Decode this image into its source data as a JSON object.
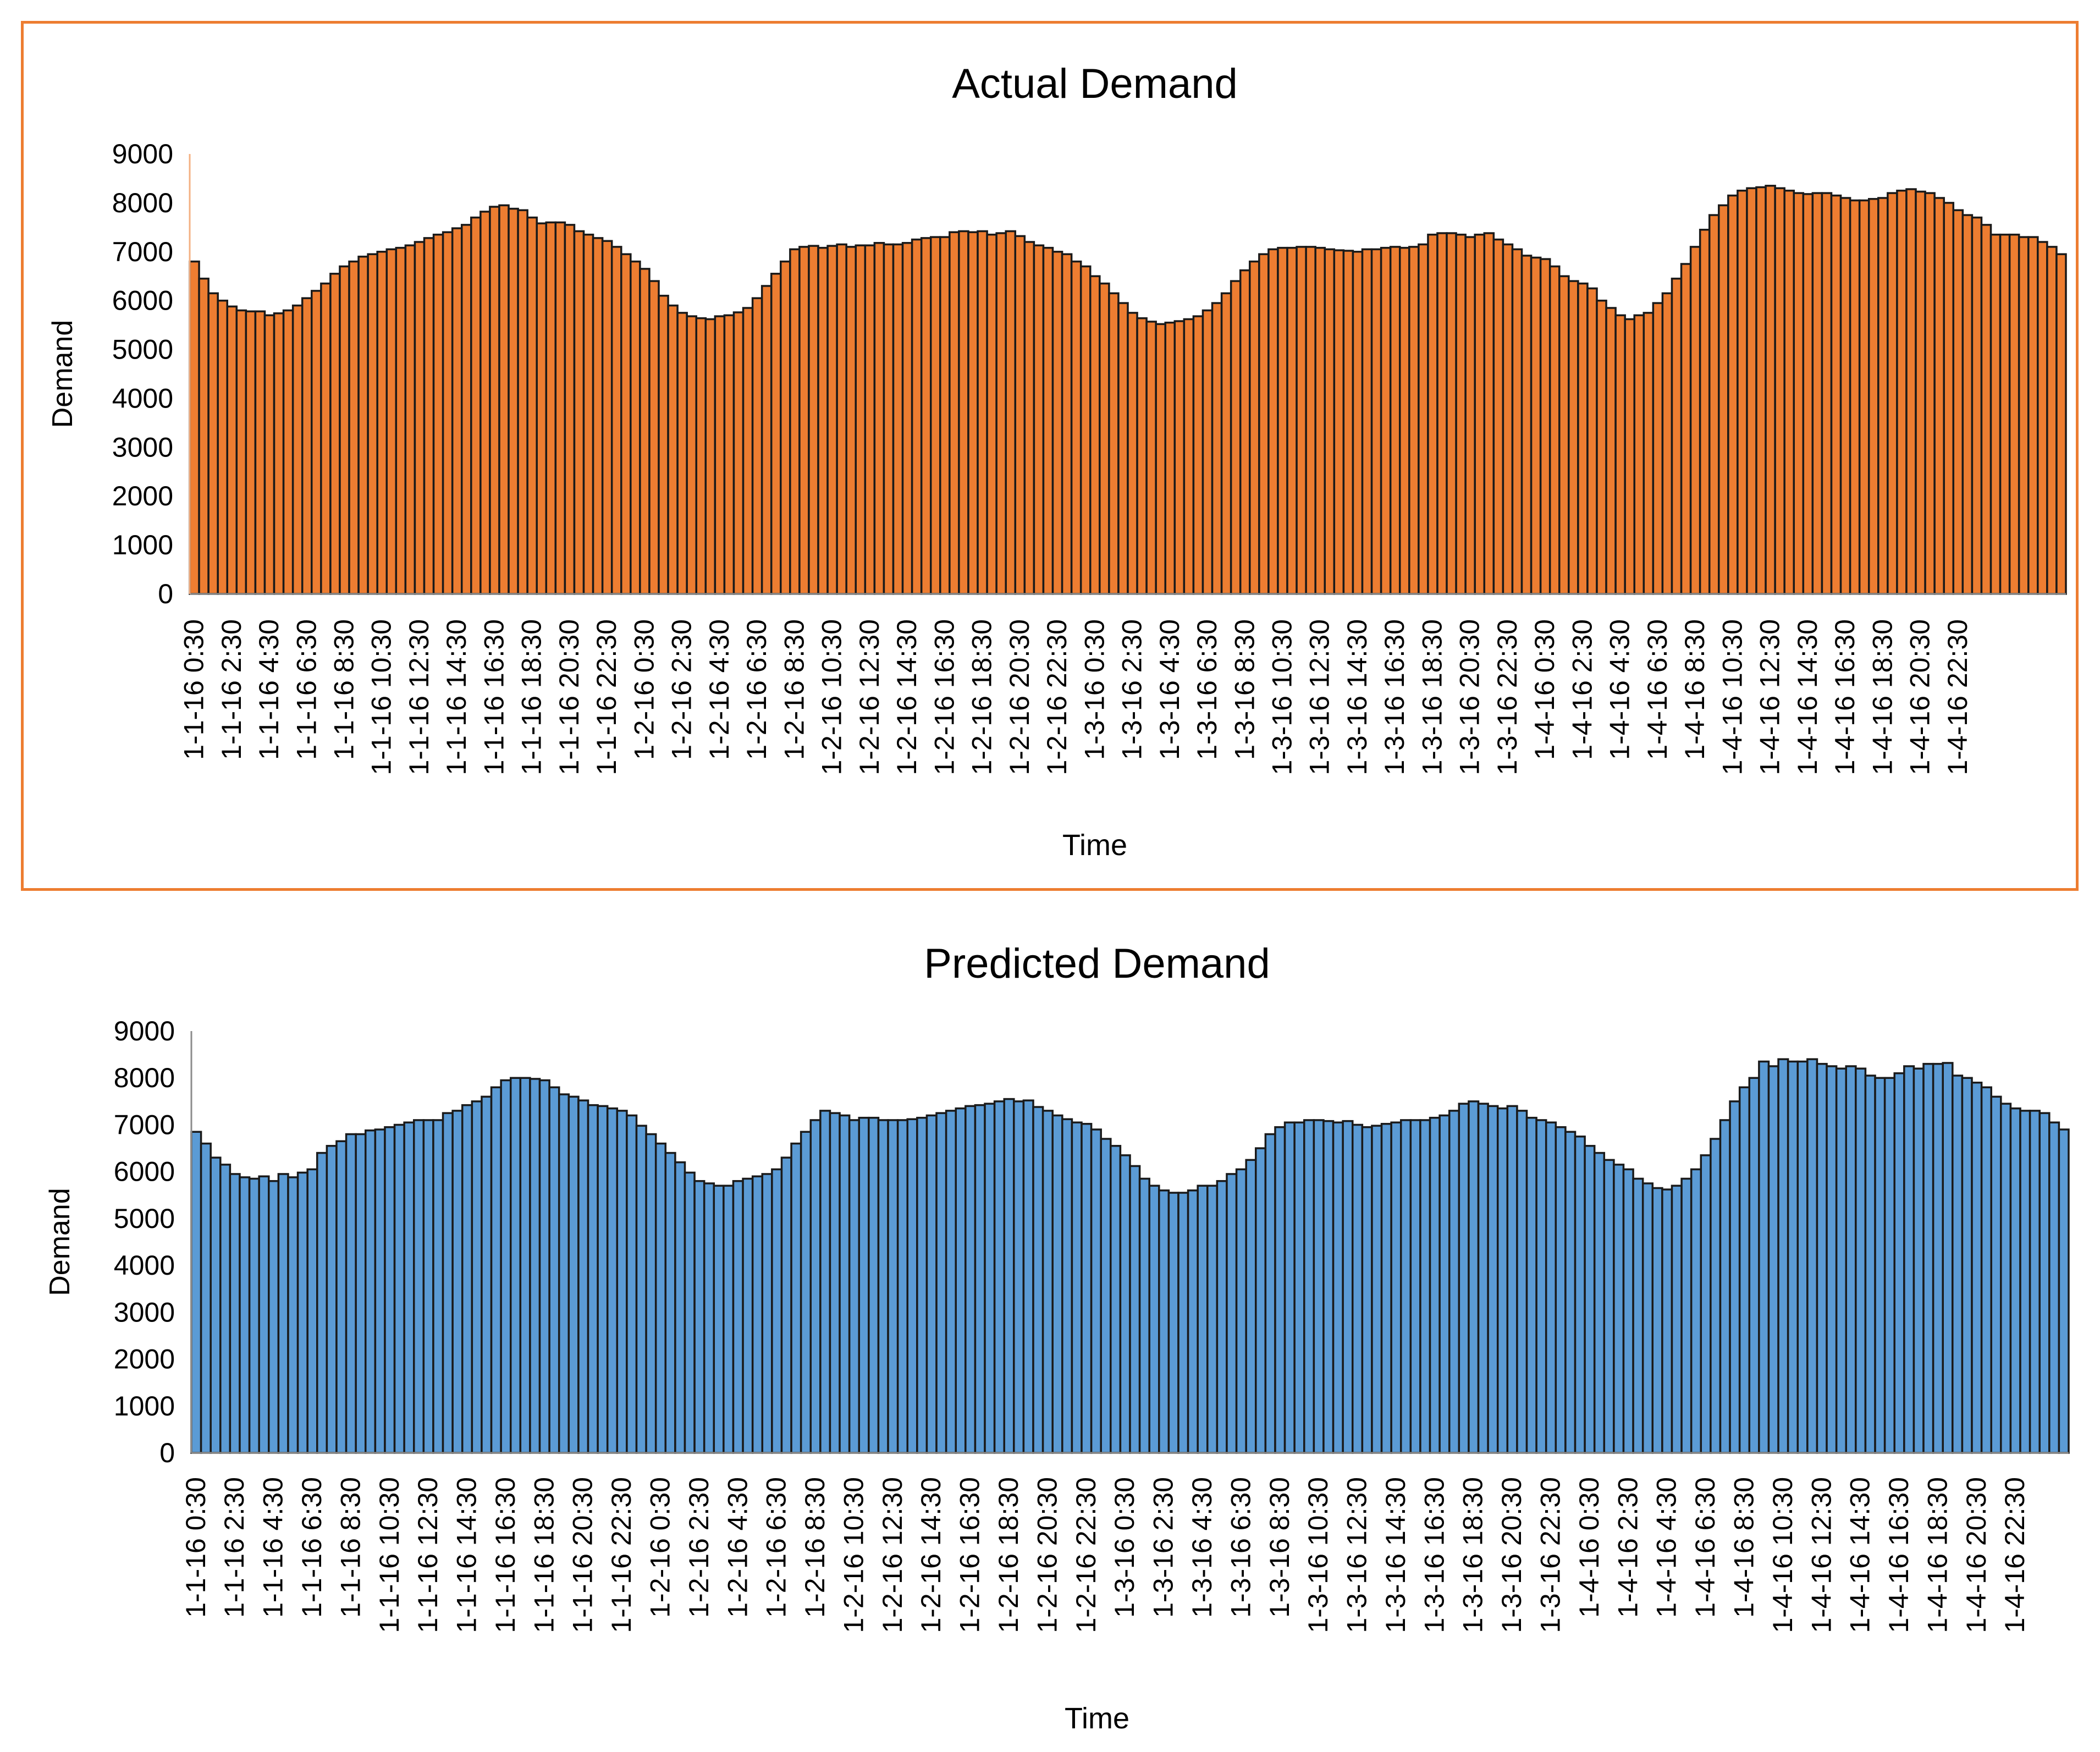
{
  "chart_data": [
    {
      "type": "bar",
      "title": "Actual Demand",
      "xlabel": "Time",
      "ylabel": "Demand",
      "ylim": [
        0,
        9000
      ],
      "yticks": [
        "0",
        "1000",
        "2000",
        "3000",
        "4000",
        "5000",
        "6000",
        "7000",
        "8000",
        "9000"
      ],
      "grid": false,
      "bar_color": "#ED7D31",
      "bar_edge_color": "#1a1a1a",
      "frame_color": "#ED7D31",
      "tick_labels": [
        "1-1-16 0:30",
        "1-1-16 2:30",
        "1-1-16 4:30",
        "1-1-16 6:30",
        "1-1-16 8:30",
        "1-1-16 10:30",
        "1-1-16 12:30",
        "1-1-16 14:30",
        "1-1-16 16:30",
        "1-1-16 18:30",
        "1-1-16 20:30",
        "1-1-16 22:30",
        "1-2-16 0:30",
        "1-2-16 2:30",
        "1-2-16 4:30",
        "1-2-16 6:30",
        "1-2-16 8:30",
        "1-2-16 10:30",
        "1-2-16 12:30",
        "1-2-16 14:30",
        "1-2-16 16:30",
        "1-2-16 18:30",
        "1-2-16 20:30",
        "1-2-16 22:30",
        "1-3-16 0:30",
        "1-3-16 2:30",
        "1-3-16 4:30",
        "1-3-16 6:30",
        "1-3-16 8:30",
        "1-3-16 10:30",
        "1-3-16 12:30",
        "1-3-16 14:30",
        "1-3-16 16:30",
        "1-3-16 18:30",
        "1-3-16 20:30",
        "1-3-16 22:30",
        "1-4-16 0:30",
        "1-4-16 2:30",
        "1-4-16 4:30",
        "1-4-16 6:30",
        "1-4-16 8:30",
        "1-4-16 10:30",
        "1-4-16 12:30",
        "1-4-16 14:30",
        "1-4-16 16:30",
        "1-4-16 18:30",
        "1-4-16 20:30",
        "1-4-16 22:30"
      ],
      "values": [
        6800,
        6450,
        6150,
        6000,
        5880,
        5800,
        5780,
        5780,
        5700,
        5740,
        5800,
        5900,
        6050,
        6200,
        6350,
        6550,
        6700,
        6800,
        6900,
        6950,
        7000,
        7050,
        7080,
        7130,
        7200,
        7280,
        7350,
        7400,
        7480,
        7550,
        7700,
        7820,
        7920,
        7950,
        7880,
        7850,
        7700,
        7580,
        7600,
        7600,
        7550,
        7420,
        7350,
        7280,
        7220,
        7100,
        6950,
        6800,
        6650,
        6400,
        6100,
        5900,
        5750,
        5680,
        5640,
        5620,
        5680,
        5700,
        5760,
        5850,
        6050,
        6300,
        6550,
        6800,
        7050,
        7100,
        7120,
        7080,
        7120,
        7150,
        7100,
        7130,
        7130,
        7180,
        7150,
        7150,
        7180,
        7250,
        7280,
        7300,
        7300,
        7400,
        7420,
        7400,
        7420,
        7350,
        7380,
        7420,
        7320,
        7200,
        7130,
        7080,
        7000,
        6950,
        6800,
        6700,
        6500,
        6350,
        6150,
        5950,
        5750,
        5640,
        5570,
        5520,
        5550,
        5580,
        5620,
        5680,
        5800,
        5950,
        6150,
        6400,
        6620,
        6800,
        6950,
        7050,
        7080,
        7080,
        7100,
        7100,
        7080,
        7050,
        7030,
        7020,
        7000,
        7050,
        7050,
        7080,
        7100,
        7080,
        7100,
        7150,
        7350,
        7380,
        7380,
        7350,
        7300,
        7350,
        7380,
        7250,
        7150,
        7050,
        6920,
        6880,
        6850,
        6700,
        6500,
        6400,
        6350,
        6250,
        6000,
        5850,
        5700,
        5620,
        5700,
        5750,
        5950,
        6150,
        6450,
        6750,
        7100,
        7450,
        7750,
        7950,
        8150,
        8250,
        8300,
        8320,
        8350,
        8300,
        8250,
        8200,
        8180,
        8200,
        8200,
        8150,
        8100,
        8050,
        8050,
        8080,
        8100,
        8200,
        8250,
        8280,
        8230,
        8200,
        8100,
        8000,
        7850,
        7750,
        7700,
        7550,
        7350,
        7350,
        7350,
        7300,
        7300,
        7200,
        7100,
        6950
      ]
    },
    {
      "type": "bar",
      "title": "Predicted Demand",
      "xlabel": "Time",
      "ylabel": "Demand",
      "ylim": [
        0,
        9000
      ],
      "yticks": [
        "0",
        "1000",
        "2000",
        "3000",
        "4000",
        "5000",
        "6000",
        "7000",
        "8000",
        "9000"
      ],
      "grid": false,
      "bar_color": "#5B9BD5",
      "bar_edge_color": "#1a1a1a",
      "tick_labels": [
        "1-1-16 0:30",
        "1-1-16 2:30",
        "1-1-16 4:30",
        "1-1-16 6:30",
        "1-1-16 8:30",
        "1-1-16 10:30",
        "1-1-16 12:30",
        "1-1-16 14:30",
        "1-1-16 16:30",
        "1-1-16 18:30",
        "1-1-16 20:30",
        "1-1-16 22:30",
        "1-2-16 0:30",
        "1-2-16 2:30",
        "1-2-16 4:30",
        "1-2-16 6:30",
        "1-2-16 8:30",
        "1-2-16 10:30",
        "1-2-16 12:30",
        "1-2-16 14:30",
        "1-2-16 16:30",
        "1-2-16 18:30",
        "1-2-16 20:30",
        "1-2-16 22:30",
        "1-3-16 0:30",
        "1-3-16 2:30",
        "1-3-16 4:30",
        "1-3-16 6:30",
        "1-3-16 8:30",
        "1-3-16 10:30",
        "1-3-16 12:30",
        "1-3-16 14:30",
        "1-3-16 16:30",
        "1-3-16 18:30",
        "1-3-16 20:30",
        "1-3-16 22:30",
        "1-4-16 0:30",
        "1-4-16 2:30",
        "1-4-16 4:30",
        "1-4-16 6:30",
        "1-4-16 8:30",
        "1-4-16 10:30",
        "1-4-16 12:30",
        "1-4-16 14:30",
        "1-4-16 16:30",
        "1-4-16 18:30",
        "1-4-16 20:30",
        "1-4-16 22:30"
      ],
      "values": [
        6850,
        6600,
        6300,
        6150,
        5950,
        5880,
        5850,
        5900,
        5800,
        5950,
        5880,
        5980,
        6050,
        6400,
        6550,
        6650,
        6800,
        6800,
        6880,
        6900,
        6950,
        7000,
        7050,
        7100,
        7100,
        7100,
        7250,
        7300,
        7420,
        7500,
        7600,
        7800,
        7950,
        8000,
        8000,
        7980,
        7950,
        7800,
        7650,
        7600,
        7520,
        7420,
        7400,
        7350,
        7300,
        7200,
        6980,
        6800,
        6600,
        6400,
        6200,
        5980,
        5800,
        5750,
        5700,
        5700,
        5800,
        5850,
        5900,
        5950,
        6050,
        6300,
        6600,
        6850,
        7100,
        7300,
        7250,
        7200,
        7100,
        7150,
        7150,
        7100,
        7100,
        7100,
        7120,
        7150,
        7200,
        7250,
        7300,
        7350,
        7400,
        7420,
        7450,
        7500,
        7550,
        7500,
        7520,
        7380,
        7300,
        7200,
        7120,
        7050,
        7020,
        6900,
        6700,
        6550,
        6350,
        6120,
        5850,
        5700,
        5600,
        5550,
        5550,
        5600,
        5700,
        5700,
        5800,
        5950,
        6050,
        6250,
        6500,
        6800,
        6950,
        7050,
        7050,
        7100,
        7100,
        7080,
        7050,
        7080,
        7000,
        6950,
        6980,
        7020,
        7050,
        7100,
        7100,
        7100,
        7150,
        7200,
        7300,
        7450,
        7500,
        7450,
        7400,
        7350,
        7400,
        7300,
        7150,
        7100,
        7050,
        6950,
        6850,
        6750,
        6550,
        6400,
        6250,
        6150,
        6050,
        5850,
        5750,
        5650,
        5620,
        5700,
        5850,
        6050,
        6350,
        6700,
        7100,
        7500,
        7800,
        8000,
        8350,
        8250,
        8400,
        8350,
        8350,
        8400,
        8300,
        8250,
        8200,
        8250,
        8200,
        8050,
        8000,
        8000,
        8100,
        8250,
        8200,
        8300,
        8300,
        8320,
        8050,
        8000,
        7900,
        7800,
        7600,
        7450,
        7350,
        7300,
        7300,
        7250,
        7050,
        6900
      ]
    }
  ]
}
